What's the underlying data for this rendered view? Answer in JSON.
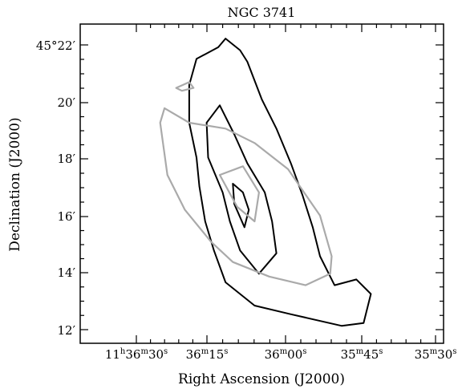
{
  "chart_data": {
    "type": "contour",
    "title": "NGC 3741",
    "xlabel": "Right Ascension (J2000)",
    "ylabel": "Declination (J2000)",
    "x_ticks": [
      {
        "h": "11",
        "m": "36",
        "s": "30"
      },
      {
        "m": "36",
        "s": "15"
      },
      {
        "m": "36",
        "s": "00"
      },
      {
        "m": "35",
        "s": "45"
      },
      {
        "m": "35",
        "s": "30"
      }
    ],
    "y_ticks": [
      "45°22′",
      "20′",
      "18′",
      "16′",
      "14′",
      "12′"
    ],
    "series": [
      {
        "color": "#000000",
        "contours": [
          [
            [
              11.5,
              21.5
            ],
            [
              11.0,
              21.9
            ],
            [
              10.0,
              22.3
            ],
            [
              9.5,
              22.0
            ],
            [
              8.0,
              21.6
            ],
            [
              7.5,
              20.7
            ],
            [
              7.5,
              19.4
            ],
            [
              8.0,
              18.2
            ],
            [
              8.2,
              17.2
            ],
            [
              8.6,
              16.0
            ],
            [
              9.2,
              15.0
            ],
            [
              10.0,
              13.9
            ],
            [
              12.0,
              13.1
            ],
            [
              14.5,
              12.8
            ],
            [
              18.0,
              12.4
            ],
            [
              19.5,
              12.5
            ],
            [
              20.0,
              13.5
            ],
            [
              19.0,
              14.0
            ],
            [
              17.5,
              13.8
            ],
            [
              16.5,
              14.8
            ],
            [
              16.0,
              15.8
            ],
            [
              15.3,
              16.9
            ],
            [
              14.5,
              18.0
            ],
            [
              13.5,
              19.2
            ],
            [
              12.5,
              20.2
            ],
            [
              11.5,
              21.5
            ]
          ],
          [
            [
              9.6,
              20.0
            ],
            [
              8.7,
              19.4
            ],
            [
              8.8,
              18.2
            ],
            [
              9.8,
              17.0
            ],
            [
              10.3,
              16.0
            ],
            [
              11.0,
              15.0
            ],
            [
              12.3,
              14.2
            ],
            [
              13.5,
              14.9
            ],
            [
              13.2,
              16.0
            ],
            [
              12.7,
              17.0
            ],
            [
              11.5,
              18.0
            ],
            [
              10.6,
              19.0
            ],
            [
              9.6,
              20.0
            ]
          ],
          [
            [
              10.5,
              17.3
            ],
            [
              10.6,
              16.6
            ],
            [
              11.3,
              15.8
            ],
            [
              11.6,
              16.4
            ],
            [
              11.2,
              17.0
            ],
            [
              10.5,
              17.3
            ]
          ]
        ]
      },
      {
        "color": "#aaaaaa",
        "contours": [
          [
            [
              5.5,
              19.4
            ],
            [
              5.8,
              19.9
            ],
            [
              7.5,
              19.4
            ],
            [
              10.0,
              19.2
            ],
            [
              12.0,
              18.7
            ],
            [
              14.3,
              17.8
            ],
            [
              16.5,
              16.2
            ],
            [
              17.3,
              14.8
            ],
            [
              17.2,
              14.2
            ],
            [
              15.5,
              13.8
            ],
            [
              13.0,
              14.1
            ],
            [
              10.5,
              14.6
            ],
            [
              9.0,
              15.3
            ],
            [
              7.2,
              16.4
            ],
            [
              6.0,
              17.6
            ],
            [
              5.5,
              19.4
            ]
          ],
          [
            [
              9.6,
              17.6
            ],
            [
              10.8,
              16.5
            ],
            [
              12.0,
              16.0
            ],
            [
              12.3,
              17.0
            ],
            [
              11.2,
              17.9
            ],
            [
              9.6,
              17.6
            ]
          ],
          [
            [
              6.6,
              20.6
            ],
            [
              7.5,
              20.8
            ],
            [
              7.8,
              20.6
            ],
            [
              7.0,
              20.5
            ],
            [
              6.6,
              20.6
            ]
          ]
        ]
      }
    ]
  }
}
